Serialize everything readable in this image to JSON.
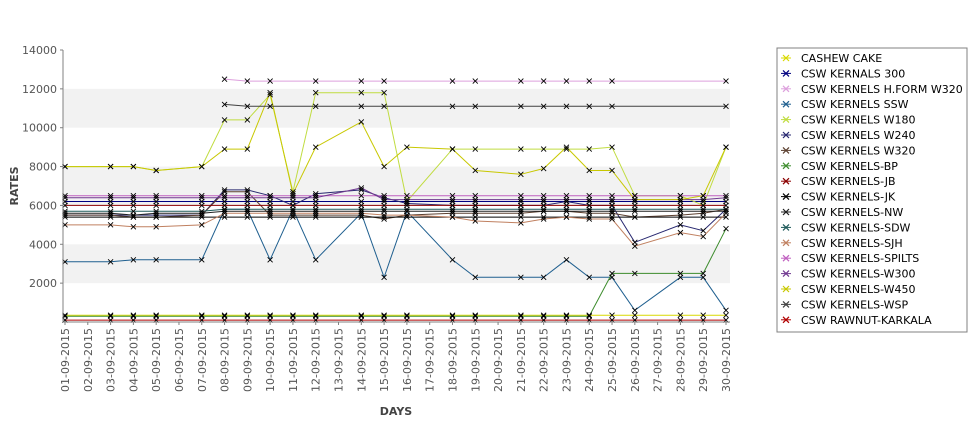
{
  "chart_data": {
    "type": "line",
    "title": "",
    "xlabel": "DAYS",
    "ylabel": "RATES",
    "ylim": [
      0,
      14000
    ],
    "yticks": [
      2000,
      4000,
      6000,
      8000,
      10000,
      12000,
      14000
    ],
    "grid": "alternating horizontal bands",
    "legend": "right",
    "marker": "x",
    "categories": [
      "01-09-2015",
      "02-09-2015",
      "03-09-2015",
      "04-09-2015",
      "05-09-2015",
      "06-09-2015",
      "07-09-2015",
      "08-09-2015",
      "09-09-2015",
      "10-09-2015",
      "11-09-2015",
      "12-09-2015",
      "13-09-2015",
      "14-09-2015",
      "15-09-2015",
      "16-09-2015",
      "17-09-2015",
      "18-09-2015",
      "19-09-2015",
      "20-09-2015",
      "21-09-2015",
      "22-09-2015",
      "23-09-2015",
      "24-09-2015",
      "25-09-2015",
      "26-09-2015",
      "27-09-2015",
      "28-09-2015",
      "29-09-2015",
      "30-09-2015"
    ],
    "series": [
      {
        "name": "CASHEW CAKE",
        "color": "#d9d900",
        "values": [
          350,
          null,
          350,
          350,
          350,
          null,
          350,
          350,
          350,
          350,
          350,
          350,
          null,
          350,
          350,
          350,
          null,
          350,
          350,
          null,
          350,
          350,
          350,
          350,
          350,
          350,
          null,
          350,
          350,
          350
        ]
      },
      {
        "name": "CSW KERNALS 300",
        "color": "#000080",
        "values": [
          6200,
          null,
          6200,
          6200,
          6200,
          null,
          6200,
          6200,
          6200,
          6200,
          6200,
          6200,
          null,
          6200,
          6200,
          6200,
          null,
          6200,
          6200,
          null,
          6200,
          6200,
          6200,
          6200,
          6200,
          6200,
          null,
          6200,
          6200,
          6200
        ]
      },
      {
        "name": "CSW KERNELS H.FORM W320",
        "color": "#dda0dd",
        "values": [
          null,
          null,
          null,
          null,
          null,
          null,
          null,
          12500,
          12400,
          12400,
          null,
          12400,
          null,
          12400,
          12400,
          null,
          null,
          12400,
          12400,
          null,
          12400,
          12400,
          12400,
          12400,
          12400,
          null,
          null,
          null,
          null,
          12400
        ]
      },
      {
        "name": "CSW KERNELS SSW",
        "color": "#1f5f8f",
        "values": [
          3100,
          null,
          3100,
          3200,
          3200,
          null,
          3200,
          5800,
          5800,
          3200,
          5800,
          3200,
          null,
          5600,
          2300,
          5700,
          null,
          3200,
          2300,
          null,
          2300,
          2300,
          3200,
          2300,
          2300,
          600,
          null,
          2300,
          2300,
          600
        ]
      },
      {
        "name": "CSW KERNELS W180",
        "color": "#c0dc40",
        "values": [
          8000,
          null,
          8000,
          8000,
          7800,
          null,
          8000,
          10400,
          10400,
          11700,
          6700,
          11800,
          null,
          11800,
          11800,
          6200,
          null,
          8900,
          8900,
          null,
          8900,
          8900,
          8900,
          8900,
          9000,
          6500,
          null,
          6500,
          6000,
          9000
        ]
      },
      {
        "name": "CSW KERNELS W240",
        "color": "#282870",
        "values": [
          5500,
          null,
          5500,
          5500,
          5500,
          null,
          5500,
          6800,
          6800,
          6500,
          6000,
          6600,
          null,
          6800,
          6400,
          6100,
          null,
          6000,
          6000,
          null,
          6000,
          6000,
          6200,
          6000,
          6000,
          4100,
          null,
          5000,
          4700,
          5800
        ]
      },
      {
        "name": "CSW KERNELS W320",
        "color": "#5c4030",
        "values": [
          5500,
          null,
          5500,
          5400,
          5400,
          null,
          5500,
          6700,
          6700,
          5500,
          5500,
          5500,
          null,
          5500,
          5300,
          5500,
          null,
          5600,
          5600,
          null,
          5600,
          5700,
          5700,
          5600,
          5600,
          5400,
          null,
          5500,
          5600,
          5800
        ]
      },
      {
        "name": "CSW KERNELS-BP",
        "color": "#3c8c2c",
        "values": [
          300,
          null,
          300,
          300,
          300,
          null,
          300,
          300,
          300,
          300,
          300,
          300,
          null,
          300,
          300,
          300,
          null,
          300,
          300,
          null,
          300,
          300,
          300,
          300,
          2500,
          2500,
          null,
          2500,
          2500,
          4800
        ]
      },
      {
        "name": "CSW KERNELS-JB",
        "color": "#8b0000",
        "values": [
          6000,
          null,
          6000,
          6000,
          6000,
          null,
          6000,
          6000,
          6000,
          6000,
          6000,
          6000,
          null,
          6000,
          6000,
          6000,
          null,
          6000,
          6000,
          null,
          6000,
          6000,
          6000,
          6000,
          6000,
          6000,
          null,
          6000,
          6000,
          6000
        ]
      },
      {
        "name": "CSW KERNELS-JK",
        "color": "#000000",
        "values": [
          5400,
          null,
          5400,
          5400,
          5400,
          null,
          5400,
          5400,
          5400,
          5400,
          5400,
          5400,
          null,
          5400,
          5400,
          5400,
          null,
          5400,
          5400,
          null,
          5400,
          5400,
          5400,
          5400,
          5400,
          5400,
          null,
          5400,
          5400,
          5400
        ]
      },
      {
        "name": "CSW KERNELS-NW",
        "color": "#202020",
        "values": [
          5600,
          null,
          5600,
          5500,
          5600,
          null,
          5600,
          5700,
          5700,
          5700,
          5700,
          5700,
          null,
          5700,
          5700,
          5700,
          null,
          5700,
          5700,
          null,
          5700,
          5700,
          5700,
          5700,
          5700,
          5700,
          null,
          5700,
          5700,
          5700
        ]
      },
      {
        "name": "CSW KERNELS-SDW",
        "color": "#1e5a5a",
        "values": [
          5700,
          null,
          5700,
          5700,
          5700,
          null,
          5700,
          5800,
          5800,
          5800,
          5800,
          5800,
          null,
          5800,
          5800,
          5800,
          null,
          5800,
          5800,
          null,
          5800,
          5800,
          5800,
          5800,
          5800,
          5800,
          null,
          5800,
          5800,
          5800
        ]
      },
      {
        "name": "CSW KERNELS-SJH",
        "color": "#c08060",
        "values": [
          5000,
          null,
          5000,
          4900,
          4900,
          null,
          5000,
          5600,
          5600,
          5600,
          5600,
          5600,
          null,
          5600,
          5500,
          5500,
          null,
          5400,
          5200,
          null,
          5100,
          5300,
          5400,
          5300,
          5300,
          3900,
          null,
          4600,
          4400,
          5600
        ]
      },
      {
        "name": "CSW KERNELS-SPILTS",
        "color": "#c060c0",
        "values": [
          6500,
          null,
          6500,
          6500,
          6500,
          null,
          6500,
          6500,
          6500,
          6500,
          6500,
          6500,
          null,
          6500,
          6500,
          6500,
          null,
          6500,
          6500,
          null,
          6500,
          6500,
          6500,
          6500,
          6500,
          6500,
          null,
          6500,
          6500,
          6500
        ]
      },
      {
        "name": "CSW KERNELS-W300",
        "color": "#703890",
        "values": [
          6400,
          null,
          6400,
          6400,
          6400,
          null,
          6400,
          6400,
          6400,
          6400,
          6400,
          6400,
          null,
          6900,
          6300,
          6300,
          null,
          6300,
          6300,
          null,
          6300,
          6300,
          6300,
          6300,
          6300,
          6300,
          null,
          6300,
          6300,
          6400
        ]
      },
      {
        "name": "CSW KERNELS-W450",
        "color": "#c8c800",
        "values": [
          8000,
          null,
          8000,
          8000,
          7800,
          null,
          8000,
          8900,
          8900,
          11800,
          6600,
          9000,
          null,
          10300,
          8000,
          9000,
          null,
          8900,
          7800,
          null,
          7600,
          7900,
          9000,
          7800,
          7800,
          6300,
          null,
          6300,
          6500,
          9000
        ]
      },
      {
        "name": "CSW KERNELS-WSP",
        "color": "#404040",
        "values": [
          null,
          null,
          null,
          null,
          null,
          null,
          null,
          11200,
          11100,
          11100,
          null,
          11100,
          null,
          11100,
          11100,
          null,
          null,
          11100,
          11100,
          null,
          11100,
          11100,
          11100,
          11100,
          11100,
          null,
          null,
          null,
          null,
          11100
        ]
      },
      {
        "name": "CSW RAWNUT-KARKALA",
        "color": "#b00000",
        "values": [
          100,
          null,
          100,
          100,
          100,
          null,
          100,
          100,
          100,
          100,
          100,
          100,
          null,
          100,
          100,
          100,
          null,
          100,
          100,
          null,
          100,
          100,
          100,
          100,
          100,
          100,
          null,
          100,
          100,
          100
        ]
      }
    ]
  }
}
